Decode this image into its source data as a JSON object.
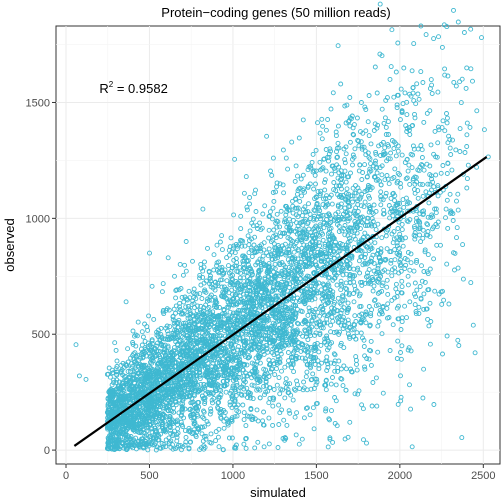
{
  "chart_data": {
    "type": "scatter",
    "title": "Protein−coding genes (50 million reads)",
    "xlabel": "simulated",
    "ylabel": "observed",
    "xlim": [
      -60,
      2600
    ],
    "ylim": [
      -60,
      1830
    ],
    "x_ticks": [
      0,
      500,
      1000,
      1500,
      2000,
      2500
    ],
    "y_ticks": [
      0,
      500,
      1000,
      1500
    ],
    "grid": true,
    "point_color": "#3fb8d1",
    "line_color": "#000000",
    "annotation": {
      "base": "R",
      "sup": "2",
      "rest": " = 0.9582",
      "x": 200,
      "y": 1540
    },
    "fit_line": {
      "x": [
        50,
        2520
      ],
      "y": [
        18,
        1265
      ]
    },
    "points": [
      {
        "x": 1630,
        "y": 1745
      },
      {
        "x": 1790,
        "y": 1480
      },
      {
        "x": 1560,
        "y": 1380
      },
      {
        "x": 1320,
        "y": 1260
      },
      {
        "x": 1010,
        "y": 1255
      },
      {
        "x": 1480,
        "y": 1200
      },
      {
        "x": 1080,
        "y": 1180
      },
      {
        "x": 1620,
        "y": 1140
      },
      {
        "x": 2530,
        "y": 1265
      },
      {
        "x": 2380,
        "y": 1190
      },
      {
        "x": 2190,
        "y": 1170
      },
      {
        "x": 1900,
        "y": 1080
      },
      {
        "x": 820,
        "y": 1040
      },
      {
        "x": 1700,
        "y": 1000
      },
      {
        "x": 1220,
        "y": 1010
      },
      {
        "x": 60,
        "y": 455
      },
      {
        "x": 80,
        "y": 320
      },
      {
        "x": 120,
        "y": 305
      },
      {
        "x": 360,
        "y": 640
      },
      {
        "x": 500,
        "y": 850
      },
      {
        "x": 720,
        "y": 900
      },
      {
        "x": 650,
        "y": 750
      },
      {
        "x": 1800,
        "y": 30
      },
      {
        "x": 1700,
        "y": 120
      },
      {
        "x": 1900,
        "y": 620
      },
      {
        "x": 2020,
        "y": 880
      },
      {
        "x": 1300,
        "y": 50
      },
      {
        "x": 900,
        "y": 80
      },
      {
        "x": 1500,
        "y": 200
      },
      {
        "x": 1100,
        "y": 1090
      },
      {
        "x": 1420,
        "y": 1120
      },
      {
        "x": 2100,
        "y": 1000
      },
      {
        "x": 300,
        "y": 430
      },
      {
        "x": 400,
        "y": 10
      },
      {
        "x": 1650,
        "y": 350
      },
      {
        "x": 1550,
        "y": 280
      }
    ],
    "cloud": {
      "count": 5500,
      "x_range": [
        50,
        2520
      ],
      "slope": 0.505,
      "intercept": -7,
      "spread": 0.14
    }
  }
}
